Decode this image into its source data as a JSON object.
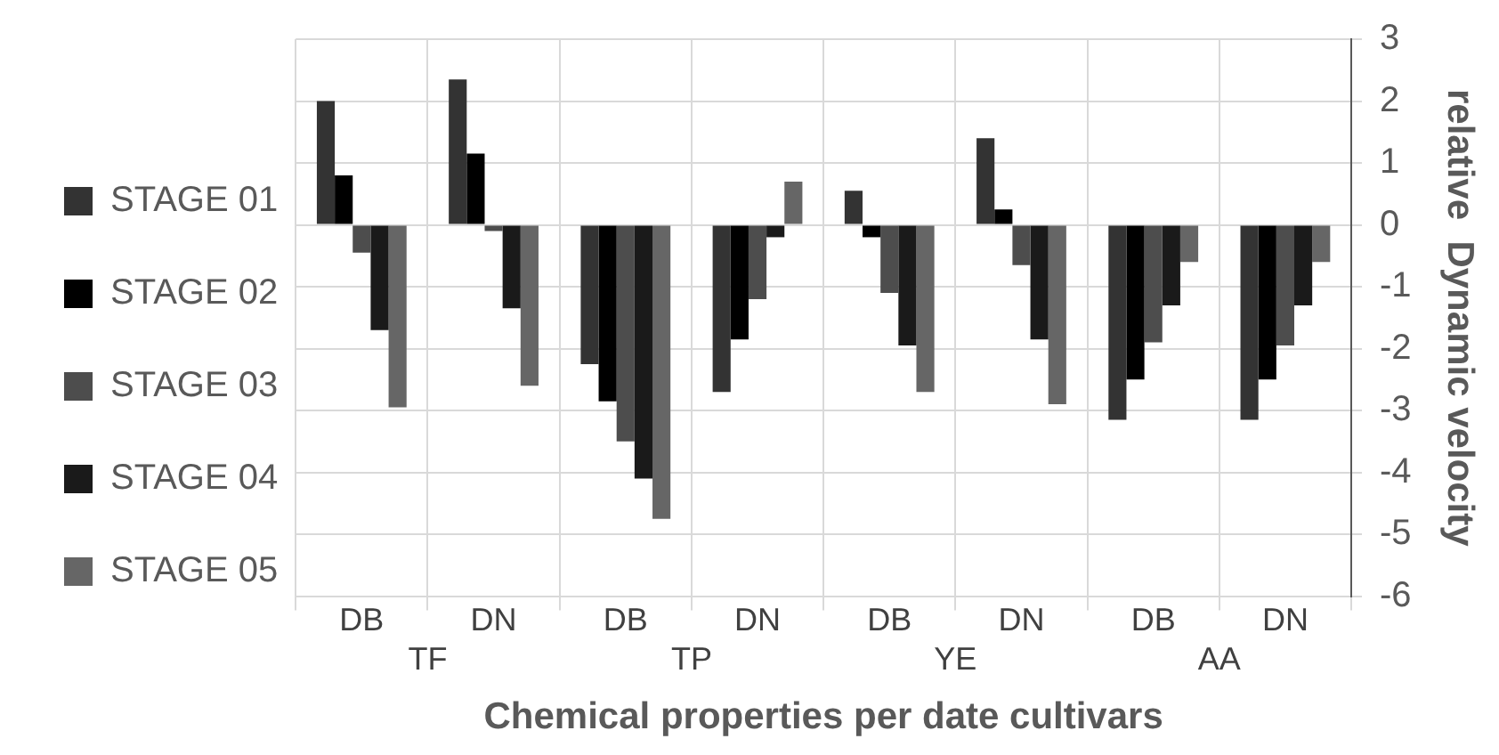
{
  "chart_data": {
    "type": "bar",
    "xlabel": "Chemical properties per date cultivars",
    "ylabel": "relative  Dynamic velocity",
    "categories": [
      "DB",
      "DN",
      "DB",
      "DN",
      "DB",
      "DN",
      "DB",
      "DN"
    ],
    "annotations": [
      "TF",
      "TP",
      "YE",
      "AA"
    ],
    "series": [
      {
        "name": "STAGE 01",
        "color": "#333333",
        "values": [
          2.0,
          2.35,
          -2.25,
          -2.7,
          0.55,
          1.4,
          -3.15,
          -3.15
        ]
      },
      {
        "name": "STAGE 02",
        "color": "#000000",
        "values": [
          0.8,
          1.15,
          -2.85,
          -1.85,
          -0.2,
          0.25,
          -2.5,
          -2.5
        ]
      },
      {
        "name": "STAGE 03",
        "color": "#4d4d4d",
        "values": [
          -0.45,
          -0.1,
          -3.5,
          -1.2,
          -1.1,
          -0.65,
          -1.9,
          -1.95
        ]
      },
      {
        "name": "STAGE 04",
        "color": "#1a1a1a",
        "values": [
          -1.7,
          -1.35,
          -4.1,
          -0.2,
          -1.95,
          -1.85,
          -1.3,
          -1.3
        ]
      },
      {
        "name": "STAGE 05",
        "color": "#666666",
        "values": [
          -2.95,
          -2.6,
          -4.75,
          0.7,
          -2.7,
          -2.9,
          -0.6,
          -0.6
        ]
      }
    ],
    "ylim": [
      -6,
      3
    ],
    "yticks": [
      -6,
      -5,
      -4,
      -3,
      -2,
      -1,
      0,
      1,
      2,
      3
    ],
    "grid": true,
    "legend": "left"
  }
}
